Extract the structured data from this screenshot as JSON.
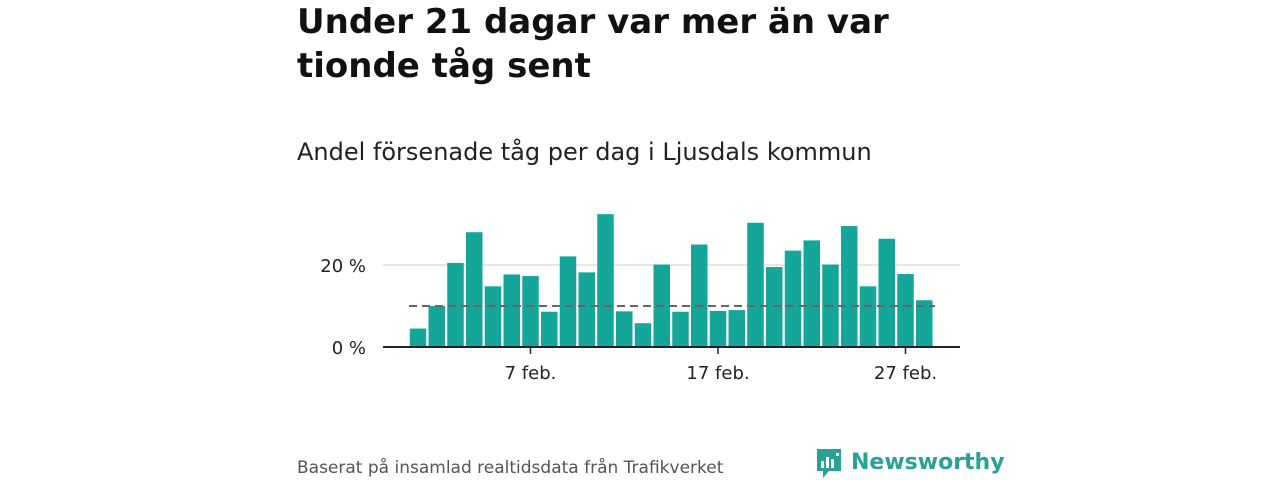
{
  "title": "Under 21 dagar var mer än var tionde tåg sent",
  "subtitle": "Andel försenade tåg per dag i Ljusdals kommun",
  "source": "Baserat på insamlad realtidsdata från Trafikverket",
  "brand": {
    "name": "Newsworthy",
    "icon": "newsworthy-logo-icon",
    "color": "#2aa197"
  },
  "colors": {
    "bar": "#14a699",
    "grid": "#dddddd",
    "reference_line": "#666666",
    "axis": "#222222"
  },
  "chart_data": {
    "type": "bar",
    "x_start_day": 1,
    "month_label": "feb.",
    "x": [
      "1 feb.",
      "2 feb.",
      "3 feb.",
      "4 feb.",
      "5 feb.",
      "6 feb.",
      "7 feb.",
      "8 feb.",
      "9 feb.",
      "10 feb.",
      "11 feb.",
      "12 feb.",
      "13 feb.",
      "14 feb.",
      "15 feb.",
      "16 feb.",
      "17 feb.",
      "18 feb.",
      "19 feb.",
      "20 feb.",
      "21 feb.",
      "22 feb.",
      "23 feb.",
      "24 feb.",
      "25 feb.",
      "26 feb.",
      "27 feb.",
      "28 feb."
    ],
    "values": [
      4.5,
      10,
      20.5,
      28,
      14.8,
      17.7,
      17.3,
      8.6,
      22.1,
      18.2,
      32.4,
      8.7,
      5.8,
      20.1,
      8.6,
      25,
      8.8,
      9,
      30.3,
      19.5,
      23.5,
      26,
      20.1,
      29.5,
      14.8,
      26.4,
      17.8,
      11.4
    ],
    "reference_line": 10,
    "x_ticks": [
      "7 feb.",
      "17 feb.",
      "27 feb."
    ],
    "x_tick_days": [
      7,
      17,
      27
    ],
    "y_ticks": [
      "0 %",
      "20 %"
    ],
    "y_tick_values": [
      0,
      20
    ],
    "ylim": [
      0,
      33
    ],
    "grid": true
  }
}
